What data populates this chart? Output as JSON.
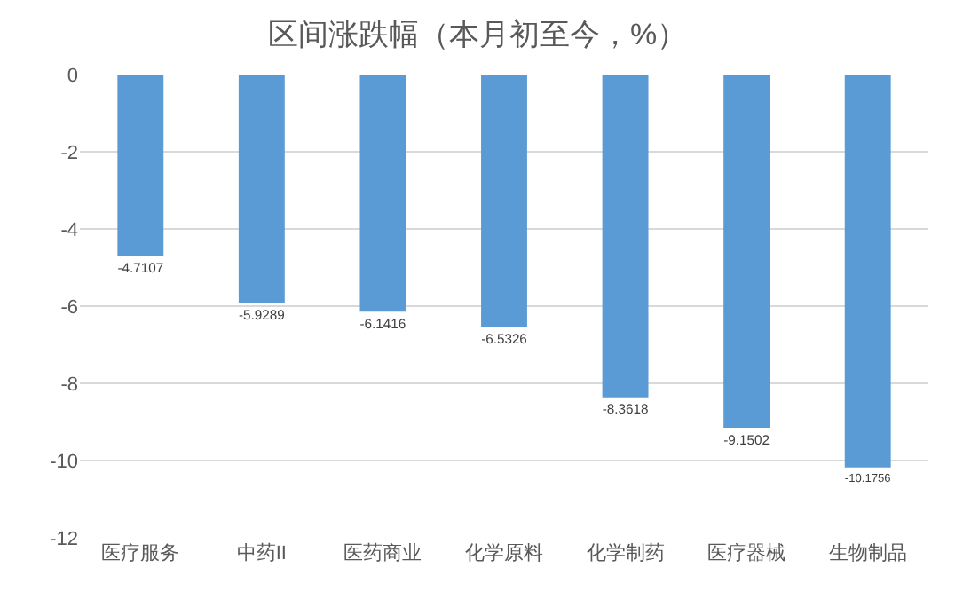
{
  "chart_data": {
    "type": "bar",
    "title": "区间涨跌幅（本月初至今，%）",
    "categories": [
      "医疗服务",
      "中药II",
      "医药商业",
      "化学原料",
      "化学制药",
      "医疗器械",
      "生物制品"
    ],
    "values": [
      -4.7107,
      -5.9289,
      -6.1416,
      -6.5326,
      -8.3618,
      -9.1502,
      -10.1756
    ],
    "color": "#5b9bd5",
    "ylim": [
      -12,
      0
    ],
    "yticks": [
      -12,
      -10,
      -8,
      -6,
      -4,
      -2,
      0
    ],
    "grid": "y",
    "data_labels": true,
    "legend": false
  }
}
